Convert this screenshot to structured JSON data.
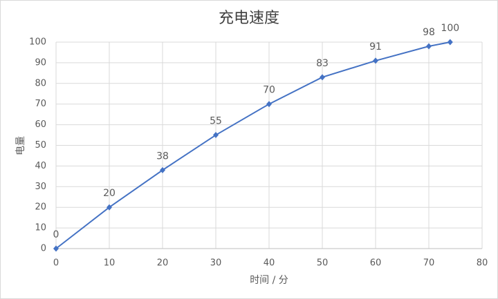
{
  "chart_data": {
    "type": "line",
    "title": "充电速度",
    "x_label": "时间 / 分",
    "y_label": "电量",
    "series": [
      {
        "name": "电量",
        "color": "#4472c4",
        "x": [
          0,
          10,
          20,
          30,
          40,
          50,
          60,
          70,
          74
        ],
        "values": [
          0,
          20,
          38,
          55,
          70,
          83,
          91,
          98,
          100
        ]
      }
    ],
    "xlim": [
      0,
      80
    ],
    "xticks": [
      0,
      10,
      20,
      30,
      40,
      50,
      60,
      70,
      80
    ],
    "ylim": [
      0,
      100
    ],
    "yticks": [
      0,
      10,
      20,
      30,
      40,
      50,
      60,
      70,
      80,
      90,
      100
    ],
    "grid": true
  }
}
